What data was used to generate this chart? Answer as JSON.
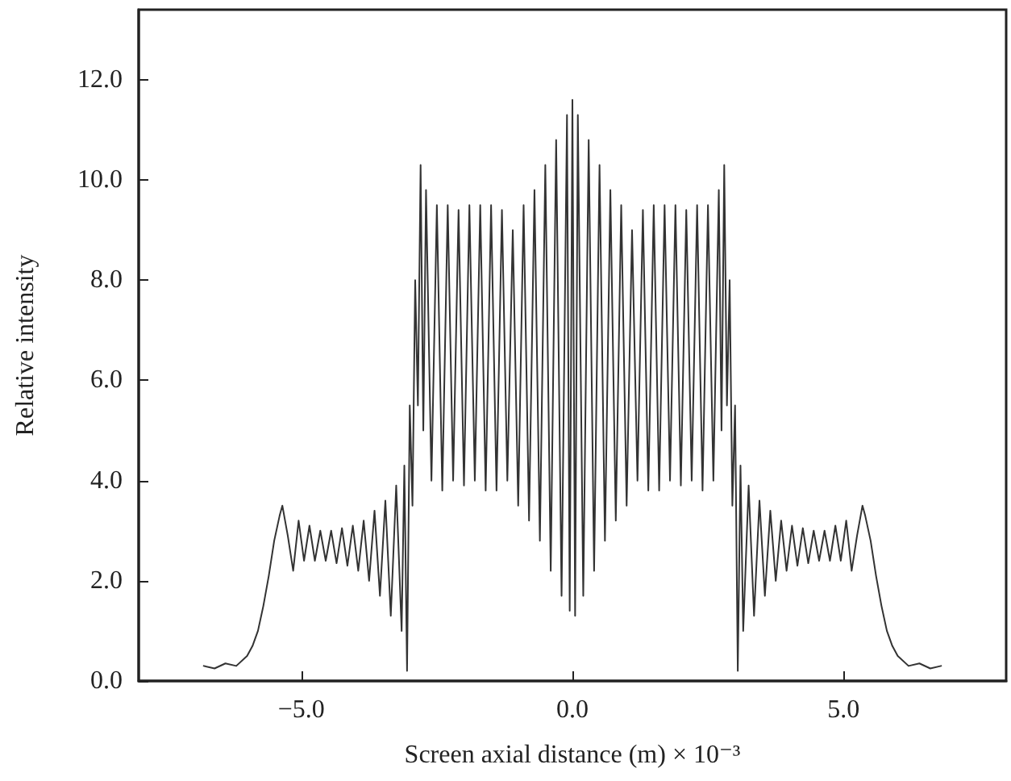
{
  "chart_data": {
    "type": "line",
    "xlabel": "Screen axial distance (m) × 10⁻³",
    "ylabel": "Relative intensity",
    "xlim": [
      -8,
      8
    ],
    "xticks": [
      {
        "value": -5,
        "label": "−5.0"
      },
      {
        "value": 0,
        "label": "0.0"
      },
      {
        "value": 5,
        "label": "5.0"
      }
    ],
    "ylim": [
      0,
      13.4
    ],
    "yticks": [
      {
        "value": 0,
        "label": "0.0"
      },
      {
        "value": 2,
        "label": "2.0"
      },
      {
        "value": 4,
        "label": "4.0"
      },
      {
        "value": 6,
        "label": "6.0"
      },
      {
        "value": 8,
        "label": "8.0"
      },
      {
        "value": 10,
        "label": "10.0"
      },
      {
        "value": 12,
        "label": "12.0"
      }
    ],
    "grid": false,
    "marker": "none",
    "line_style": "solid",
    "series": [
      {
        "color": "#333333",
        "x": [
          -6.8,
          -6.6,
          -6.4,
          -6.2,
          -6.0,
          -5.9,
          -5.8,
          -5.7,
          -5.6,
          -5.5,
          -5.4,
          -5.35,
          -5.25,
          -5.15,
          -5.05,
          -4.95,
          -4.85,
          -4.75,
          -4.65,
          -4.55,
          -4.45,
          -4.35,
          -4.25,
          -4.15,
          -4.05,
          -3.95,
          -3.85,
          -3.75,
          -3.65,
          -3.55,
          -3.45,
          -3.35,
          -3.25,
          -3.15,
          -3.1,
          -3.05,
          -3.0,
          -2.95,
          -2.9,
          -2.85,
          -2.8,
          -2.75,
          -2.7,
          -2.6,
          -2.5,
          -2.4,
          -2.3,
          -2.2,
          -2.1,
          -2.0,
          -1.9,
          -1.8,
          -1.7,
          -1.6,
          -1.5,
          -1.4,
          -1.3,
          -1.2,
          -1.1,
          -1.0,
          -0.9,
          -0.8,
          -0.7,
          -0.6,
          -0.5,
          -0.4,
          -0.3,
          -0.2,
          -0.1,
          -0.05,
          0.0,
          0.05,
          0.1,
          0.2,
          0.3,
          0.4,
          0.5,
          0.6,
          0.7,
          0.8,
          0.9,
          1.0,
          1.1,
          1.2,
          1.3,
          1.4,
          1.5,
          1.6,
          1.7,
          1.8,
          1.9,
          2.0,
          2.1,
          2.2,
          2.3,
          2.4,
          2.5,
          2.6,
          2.7,
          2.75,
          2.8,
          2.85,
          2.9,
          2.95,
          3.0,
          3.05,
          3.1,
          3.15,
          3.25,
          3.35,
          3.45,
          3.55,
          3.65,
          3.75,
          3.85,
          3.95,
          4.05,
          4.15,
          4.25,
          4.35,
          4.45,
          4.55,
          4.65,
          4.75,
          4.85,
          4.95,
          5.05,
          5.15,
          5.25,
          5.35,
          5.4,
          5.5,
          5.6,
          5.7,
          5.8,
          5.9,
          6.0,
          6.2,
          6.4,
          6.6,
          6.8
        ],
        "values": [
          0.3,
          0.25,
          0.35,
          0.3,
          0.5,
          0.7,
          1.0,
          1.5,
          2.1,
          2.8,
          3.3,
          3.5,
          2.9,
          2.2,
          3.2,
          2.4,
          3.1,
          2.4,
          3.0,
          2.4,
          3.0,
          2.35,
          3.05,
          2.3,
          3.1,
          2.2,
          3.2,
          2.0,
          3.4,
          1.7,
          3.6,
          1.3,
          3.9,
          1.0,
          4.3,
          0.2,
          5.5,
          3.5,
          8.0,
          5.5,
          10.3,
          5.0,
          9.8,
          4.0,
          9.5,
          3.8,
          9.5,
          4.0,
          9.4,
          3.9,
          9.5,
          4.0,
          9.5,
          3.8,
          9.5,
          3.8,
          9.4,
          4.0,
          9.0,
          3.5,
          9.5,
          3.2,
          9.8,
          2.8,
          10.3,
          2.2,
          10.8,
          1.7,
          11.3,
          1.4,
          11.6,
          1.3,
          11.3,
          1.7,
          10.8,
          2.2,
          10.3,
          2.8,
          9.8,
          3.2,
          9.5,
          3.5,
          9.0,
          4.0,
          9.4,
          3.8,
          9.5,
          3.8,
          9.5,
          4.0,
          9.5,
          3.9,
          9.4,
          4.0,
          9.5,
          3.8,
          9.5,
          4.0,
          9.8,
          5.0,
          10.3,
          5.5,
          8.0,
          3.5,
          5.5,
          0.2,
          4.3,
          1.0,
          3.9,
          1.3,
          3.6,
          1.7,
          3.4,
          2.0,
          3.2,
          2.2,
          3.1,
          2.3,
          3.05,
          2.35,
          3.0,
          2.4,
          3.0,
          2.4,
          3.1,
          2.4,
          3.2,
          2.2,
          2.9,
          3.5,
          3.3,
          2.8,
          2.1,
          1.5,
          1.0,
          0.7,
          0.5,
          0.3,
          0.35,
          0.25,
          0.3
        ]
      }
    ]
  }
}
